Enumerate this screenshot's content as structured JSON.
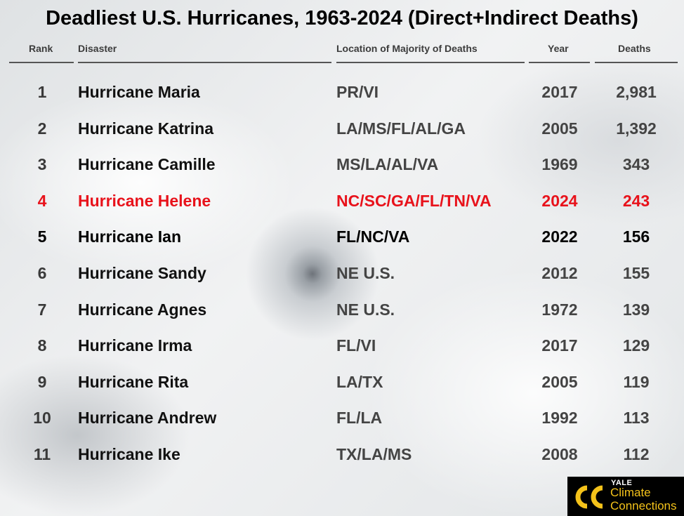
{
  "title": "Deadliest U.S. Hurricanes, 1963-2024 (Direct+Indirect Deaths)",
  "columns": {
    "rank": "Rank",
    "disaster": "Disaster",
    "location": "Location of Majority of Deaths",
    "year": "Year",
    "deaths": "Deaths"
  },
  "chart_data": {
    "type": "table",
    "title": "Deadliest U.S. Hurricanes, 1963-2024 (Direct+Indirect Deaths)",
    "columns": [
      "Rank",
      "Disaster",
      "Location of Majority of Deaths",
      "Year",
      "Deaths"
    ],
    "rows": [
      {
        "rank": "1",
        "disaster": "Hurricane Maria",
        "location": "PR/VI",
        "year": "2017",
        "deaths": "2,981",
        "style": "normal"
      },
      {
        "rank": "2",
        "disaster": "Hurricane Katrina",
        "location": "LA/MS/FL/AL/GA",
        "year": "2005",
        "deaths": "1,392",
        "style": "normal"
      },
      {
        "rank": "3",
        "disaster": "Hurricane Camille",
        "location": "MS/LA/AL/VA",
        "year": "1969",
        "deaths": "343",
        "style": "normal"
      },
      {
        "rank": "4",
        "disaster": "Hurricane Helene",
        "location": "NC/SC/GA/FL/TN/VA",
        "year": "2024",
        "deaths": "243",
        "style": "highlight"
      },
      {
        "rank": "5",
        "disaster": "Hurricane Ian",
        "location": "FL/NC/VA",
        "year": "2022",
        "deaths": "156",
        "style": "bold"
      },
      {
        "rank": "6",
        "disaster": "Hurricane Sandy",
        "location": "NE U.S.",
        "year": "2012",
        "deaths": "155",
        "style": "normal"
      },
      {
        "rank": "7",
        "disaster": "Hurricane Agnes",
        "location": "NE U.S.",
        "year": "1972",
        "deaths": "139",
        "style": "normal"
      },
      {
        "rank": "8",
        "disaster": "Hurricane Irma",
        "location": "FL/VI",
        "year": "2017",
        "deaths": "129",
        "style": "normal"
      },
      {
        "rank": "9",
        "disaster": "Hurricane Rita",
        "location": "LA/TX",
        "year": "2005",
        "deaths": "119",
        "style": "normal"
      },
      {
        "rank": "10",
        "disaster": "Hurricane Andrew",
        "location": "FL/LA",
        "year": "1992",
        "deaths": "113",
        "style": "normal"
      },
      {
        "rank": "11",
        "disaster": "Hurricane Ike",
        "location": "TX/LA/MS",
        "year": "2008",
        "deaths": "112",
        "style": "normal"
      }
    ],
    "highlight_color": "#e8121b"
  },
  "logo": {
    "line1": "YALE",
    "line2": "Climate",
    "line3": "Connections",
    "accent_color": "#f4c21a"
  }
}
